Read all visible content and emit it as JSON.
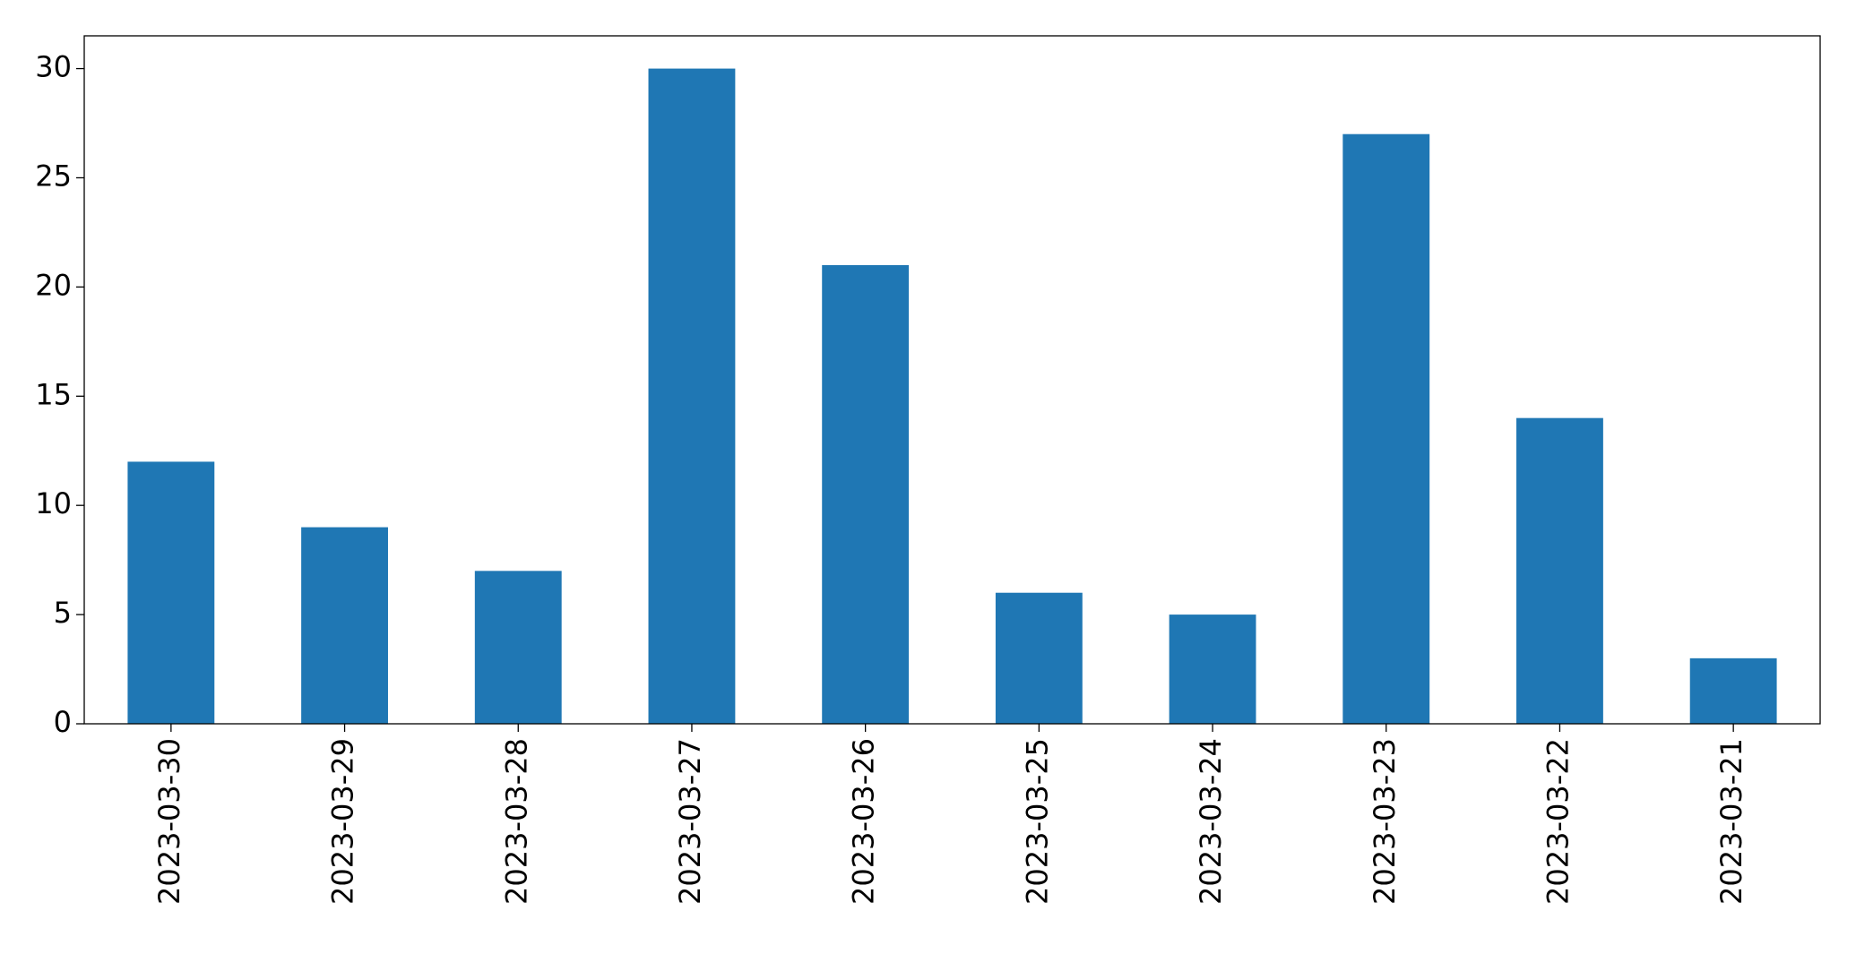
{
  "chart_data": {
    "type": "bar",
    "categories": [
      "2023-03-30",
      "2023-03-29",
      "2023-03-28",
      "2023-03-27",
      "2023-03-26",
      "2023-03-25",
      "2023-03-24",
      "2023-03-23",
      "2023-03-22",
      "2023-03-21"
    ],
    "values": [
      12,
      9,
      7,
      30,
      21,
      6,
      5,
      27,
      14,
      3
    ],
    "color": "#1f77b4",
    "ylim": [
      0,
      31.5
    ],
    "yticks": [
      0,
      5,
      10,
      15,
      20,
      25,
      30
    ],
    "grid": false
  }
}
